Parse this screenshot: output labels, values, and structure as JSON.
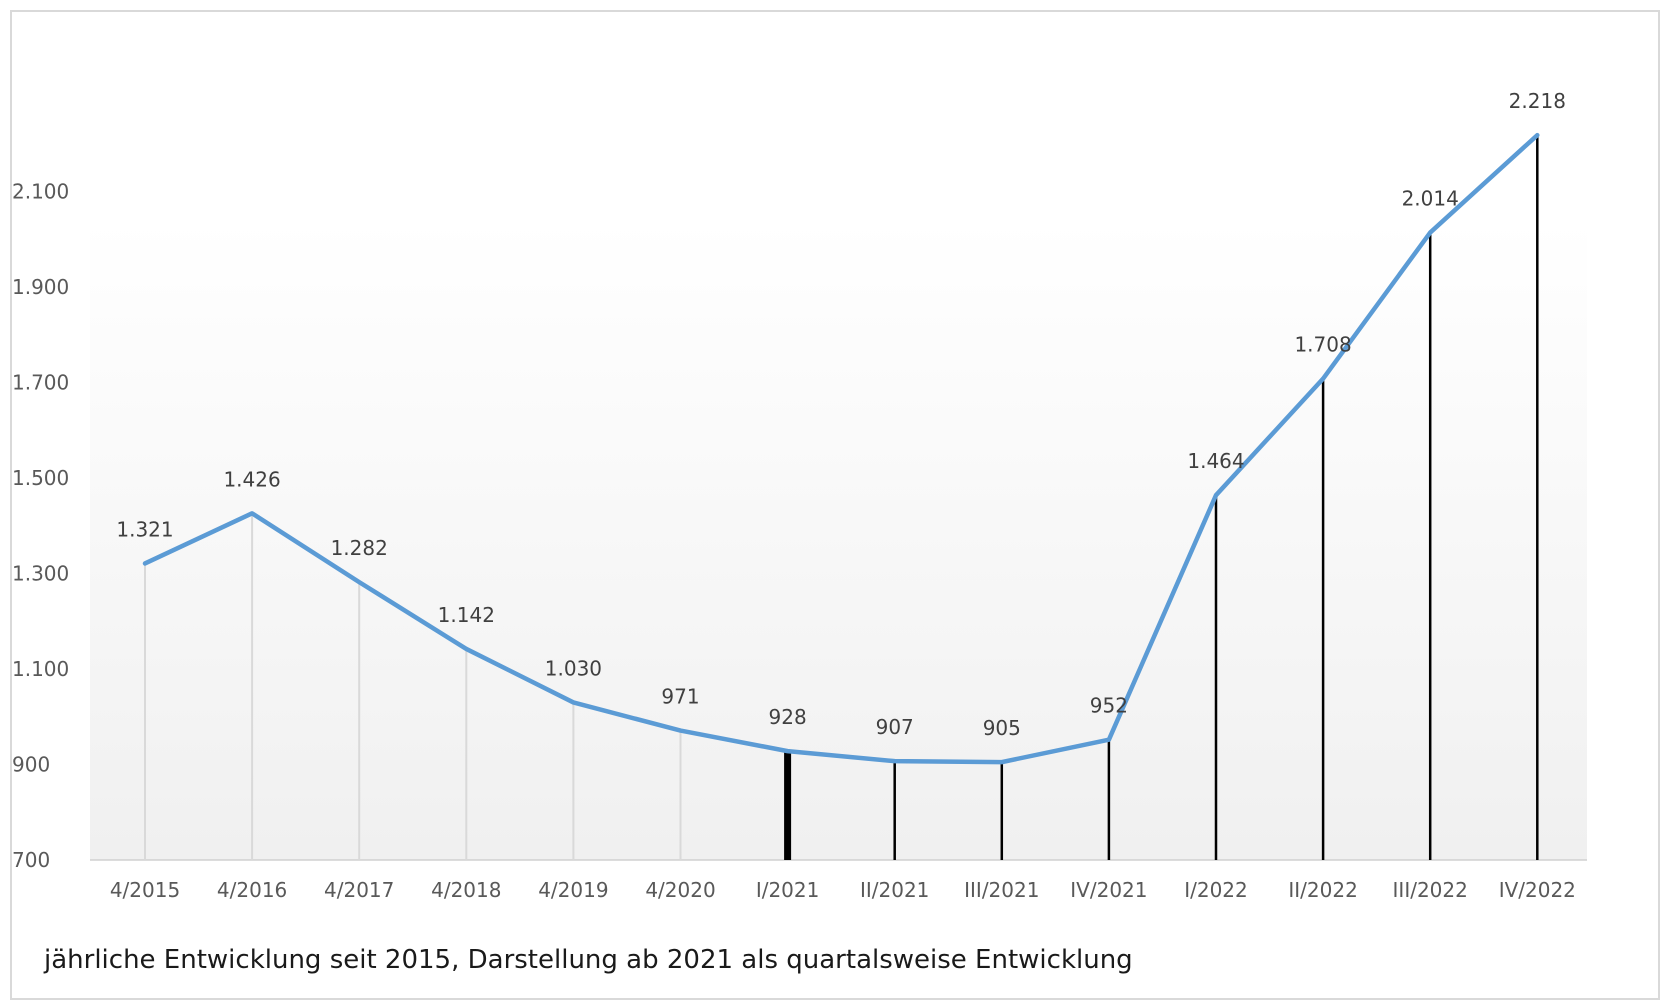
{
  "chart_data": {
    "type": "line",
    "title": "",
    "xlabel": "",
    "ylabel": "",
    "categories": [
      "4/2015",
      "4/2016",
      "4/2017",
      "4/2018",
      "4/2019",
      "4/2020",
      "I/2021",
      "II/2021",
      "III/2021",
      "IV/2021",
      "I/2022",
      "II/2022",
      "III/2022",
      "IV/2022"
    ],
    "series": [
      {
        "values": [
          1321,
          1426,
          1282,
          1142,
          1030,
          971,
          928,
          907,
          905,
          952,
          1464,
          1708,
          2014,
          2218
        ],
        "color": "#5b9bd5"
      }
    ],
    "data_labels": [
      "1.321",
      "1.426",
      "1.282",
      "1.142",
      "1.030",
      "971",
      "928",
      "907",
      "905",
      "952",
      "1.464",
      "1.708",
      "2.014",
      "2.218"
    ],
    "yticks": [
      700,
      900,
      1100,
      1300,
      1500,
      1700,
      1900,
      2100
    ],
    "ytick_labels": [
      "700",
      "900",
      "1.100",
      "1.300",
      "1.500",
      "1.700",
      "1.900",
      "2.100"
    ],
    "ylim": [
      700,
      2250
    ],
    "grid": false,
    "legend": "none",
    "drop_line_colors": [
      "#d9d9d9",
      "#d9d9d9",
      "#d9d9d9",
      "#d9d9d9",
      "#d9d9d9",
      "#d9d9d9",
      "#000000",
      "#000000",
      "#000000",
      "#000000",
      "#000000",
      "#000000",
      "#000000",
      "#000000"
    ],
    "caption": "jährliche Entwicklung seit 2015, Darstellung ab 2021 als quartalsweise Entwicklung"
  }
}
